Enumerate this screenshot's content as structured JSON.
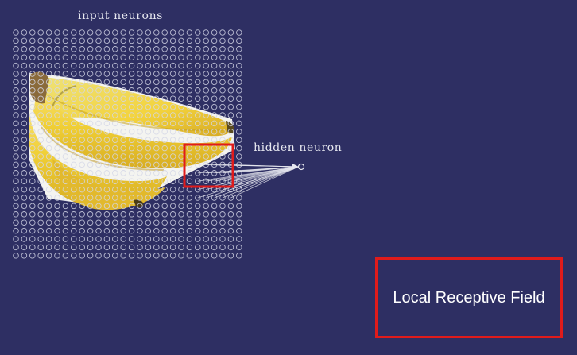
{
  "labels": {
    "input_neurons": "input neurons",
    "hidden_neuron": "hidden neuron",
    "local_receptive_field": "Local Receptive Field"
  },
  "grid": {
    "columns": 28,
    "rows": 28
  },
  "receptive_field": {
    "columns": 5,
    "rows": 5,
    "first_column": 22,
    "first_row": 16
  },
  "colors": {
    "background": "#2e2f63",
    "neuron_stroke": "#d4d6e6",
    "highlight": "#e01b1b",
    "banana": "#f2d23c",
    "banana_shadow": "#c9a21c",
    "banana_light": "#f9e77a"
  },
  "image": {
    "subject": "banana-bunch"
  }
}
